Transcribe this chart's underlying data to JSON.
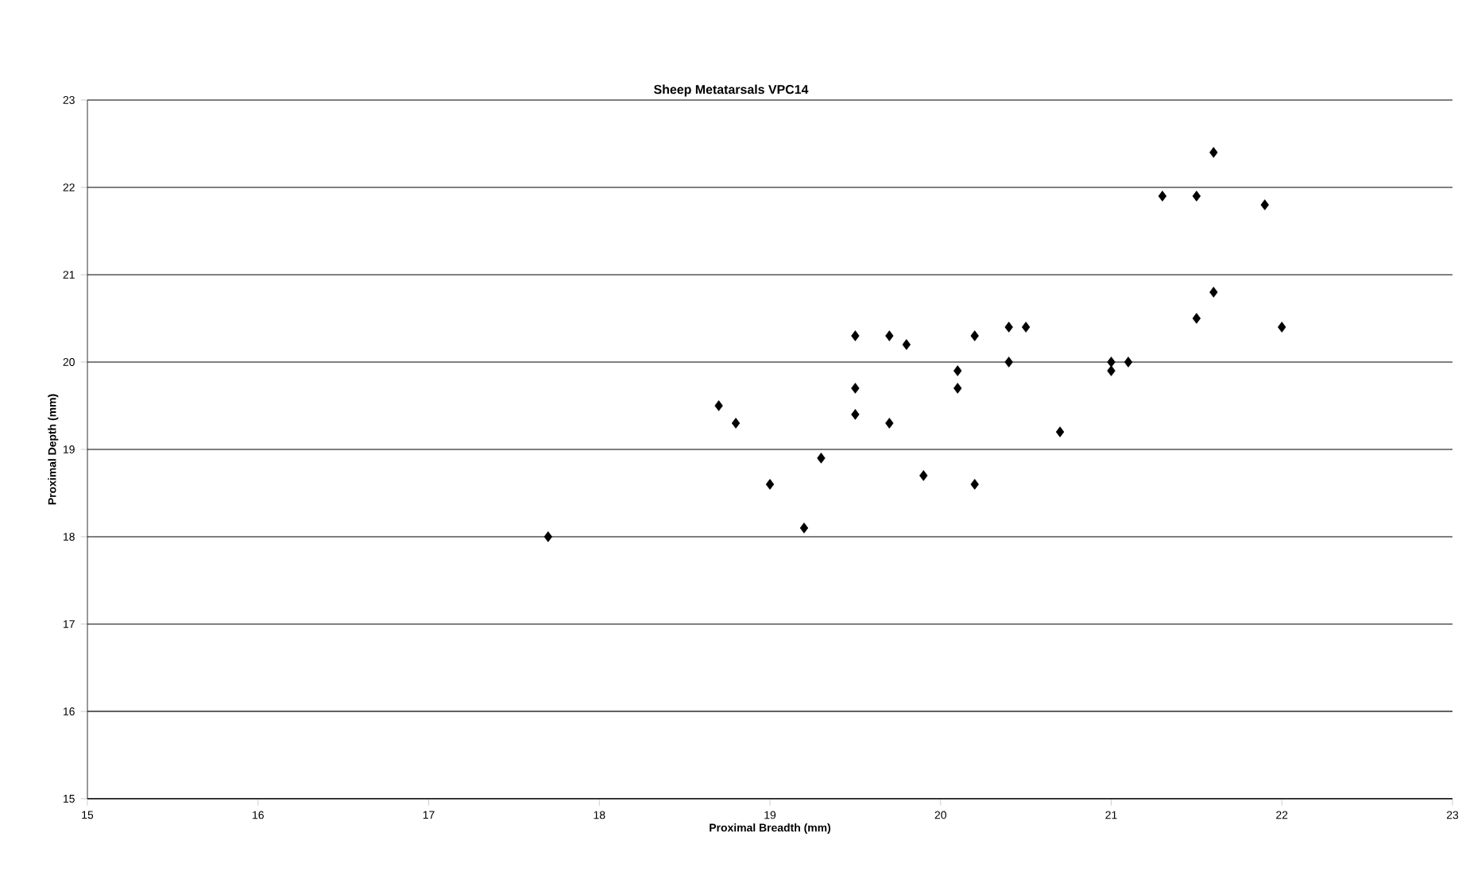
{
  "chart_data": {
    "type": "scatter",
    "title": "Sheep Metatarsals VPC14",
    "xlabel": "Proximal Breadth (mm)",
    "ylabel": "Proximal Depth (mm)",
    "x": [
      17.7,
      18.7,
      18.8,
      19.0,
      19.2,
      19.3,
      19.5,
      19.5,
      19.5,
      19.7,
      19.7,
      19.8,
      19.9,
      20.1,
      20.1,
      20.2,
      20.2,
      20.4,
      20.4,
      20.5,
      20.7,
      21.0,
      21.0,
      21.1,
      21.3,
      21.5,
      21.5,
      21.6,
      21.6,
      21.9,
      22.0
    ],
    "values": [
      18.0,
      19.5,
      19.3,
      18.6,
      18.1,
      18.9,
      20.3,
      19.7,
      19.4,
      20.3,
      19.3,
      20.2,
      18.7,
      19.9,
      19.7,
      20.3,
      18.6,
      20.4,
      20.0,
      20.4,
      19.2,
      20.0,
      19.9,
      20.0,
      21.9,
      21.9,
      20.5,
      22.4,
      20.8,
      21.8,
      20.4
    ],
    "color": "#000000",
    "marker": "diamond",
    "grid": "y",
    "xlim": [
      15,
      23
    ],
    "ylim": [
      15,
      23
    ],
    "xticks": [
      15,
      16,
      17,
      18,
      19,
      20,
      21,
      22,
      23
    ],
    "yticks": [
      15,
      16,
      17,
      18,
      19,
      20,
      21,
      22,
      23
    ]
  }
}
